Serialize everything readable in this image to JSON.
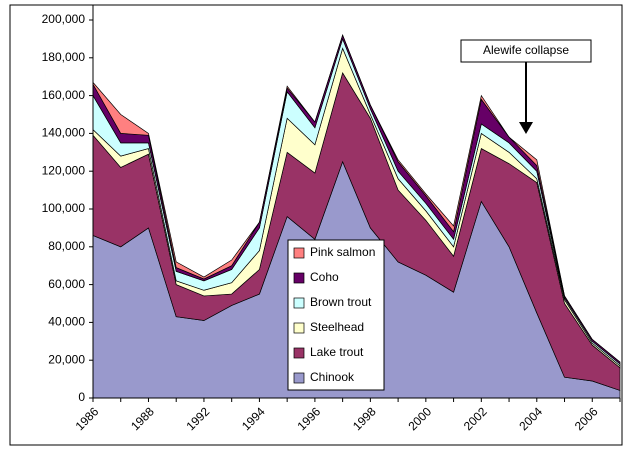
{
  "chart_data": {
    "type": "stacked_area",
    "annotation": "Alewife collapse",
    "categories": [
      "1986",
      null,
      "1988",
      null,
      "1992",
      null,
      "1994",
      null,
      "1996",
      null,
      "1998",
      null,
      "2000",
      null,
      "2002",
      null,
      "2004",
      null,
      "2006",
      null
    ],
    "series": [
      {
        "name": "Chinook",
        "color": "#9999cc",
        "values": [
          86000,
          80000,
          90000,
          43000,
          41000,
          49000,
          55000,
          96000,
          84000,
          125000,
          90000,
          72000,
          65000,
          56000,
          104000,
          80000,
          45000,
          11000,
          9000,
          4000
        ]
      },
      {
        "name": "Lake trout",
        "color": "#993366",
        "values": [
          53000,
          42000,
          39000,
          17000,
          13000,
          6000,
          13000,
          34000,
          35000,
          47000,
          58000,
          38000,
          29000,
          19000,
          28000,
          44000,
          69000,
          39000,
          19000,
          12000
        ]
      },
      {
        "name": "Steelhead",
        "color": "#ffffcc",
        "values": [
          3000,
          6000,
          3000,
          2000,
          3000,
          6000,
          10000,
          18000,
          15000,
          13000,
          2000,
          6000,
          5000,
          5000,
          8000,
          6000,
          2000,
          2000,
          1000,
          1000
        ]
      },
      {
        "name": "Brown trout",
        "color": "#ccffff",
        "values": [
          18000,
          7000,
          3000,
          5000,
          5000,
          7000,
          12000,
          14000,
          9000,
          5000,
          3000,
          4000,
          4000,
          4000,
          5000,
          5000,
          4000,
          1000,
          1000,
          1000
        ]
      },
      {
        "name": "Coho",
        "color": "#660066",
        "values": [
          6000,
          5000,
          4000,
          2000,
          1000,
          2000,
          3000,
          2000,
          3000,
          2000,
          2000,
          5000,
          4000,
          4000,
          13000,
          3000,
          3000,
          1000,
          1000,
          1000
        ]
      },
      {
        "name": "Pink salmon",
        "color": "#ff8080",
        "values": [
          1000,
          10000,
          1000,
          3000,
          1000,
          3000,
          0,
          1000,
          0,
          0,
          0,
          1000,
          1000,
          3000,
          2000,
          0,
          3000,
          0,
          0,
          0
        ]
      }
    ],
    "ylim": [
      0,
      200000
    ],
    "yticks": [
      0,
      {
        "value": 20000,
        "label": "20,000"
      },
      {
        "value": 40000,
        "label": "40,000"
      },
      {
        "value": 60000,
        "label": "60,000"
      },
      {
        "value": 80000,
        "label": "80,000"
      },
      {
        "value": 100000,
        "label": "100,000"
      },
      {
        "value": 120000,
        "label": "120,000"
      },
      {
        "value": 140000,
        "label": "140,000"
      },
      {
        "value": 160000,
        "label": "160,000"
      },
      {
        "value": 180000,
        "label": "180,000"
      },
      {
        "value": 200000,
        "label": "200,000"
      }
    ]
  }
}
